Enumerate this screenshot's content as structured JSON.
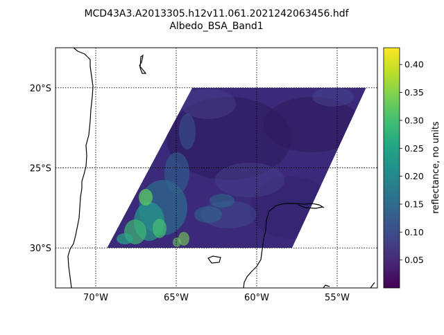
{
  "title": {
    "line1": "MCD43A3.A2013305.h12v11.061.2021242063456.hdf",
    "line2": "Albedo_BSA_Band1"
  },
  "map": {
    "type": "raster-map",
    "projection": "cylindrical",
    "lon_range": [
      -72.5,
      -52.5
    ],
    "lat_range": [
      -32.5,
      -17.5
    ],
    "grid": "dotted",
    "meridians": [
      {
        "lon": -70,
        "label": "70°W"
      },
      {
        "lon": -65,
        "label": "65°W"
      },
      {
        "lon": -60,
        "label": "60°W"
      },
      {
        "lon": -55,
        "label": "55°W"
      }
    ],
    "parallels": [
      {
        "lat": -20,
        "label": "20°S"
      },
      {
        "lat": -25,
        "label": "25°S"
      },
      {
        "lat": -30,
        "label": "30°S"
      }
    ],
    "swath": {
      "corners_lonlat": [
        [
          -64,
          -20
        ],
        [
          -53.2,
          -20
        ],
        [
          -57.8,
          -30
        ],
        [
          -69.3,
          -30
        ]
      ],
      "base_color": "#3b2a7a"
    }
  },
  "colorbar": {
    "label": "reflectance, no units",
    "cmap": "viridis",
    "vmin": 0.0,
    "vmax": 0.43,
    "ticks": [
      {
        "value": 0.05,
        "label": "0.05"
      },
      {
        "value": 0.1,
        "label": "0.10"
      },
      {
        "value": 0.15,
        "label": "0.15"
      },
      {
        "value": 0.2,
        "label": "0.20"
      },
      {
        "value": 0.25,
        "label": "0.25"
      },
      {
        "value": 0.3,
        "label": "0.30"
      },
      {
        "value": 0.35,
        "label": "0.35"
      },
      {
        "value": 0.4,
        "label": "0.40"
      }
    ]
  }
}
